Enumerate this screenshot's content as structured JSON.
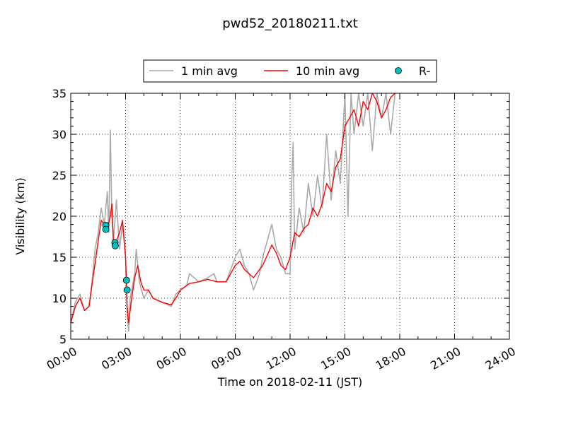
{
  "chart_data": {
    "type": "line",
    "title": "pwd52_20180211.txt",
    "xlabel": "Time on 2018-02-11 (JST)",
    "ylabel": "Visibility (km)",
    "xlim": [
      "00:00",
      "24:00"
    ],
    "ylim": [
      5,
      35
    ],
    "x_ticks": [
      "00:00",
      "03:00",
      "06:00",
      "09:00",
      "12:00",
      "15:00",
      "18:00",
      "21:00",
      "24:00"
    ],
    "y_ticks": [
      "5",
      "10",
      "15",
      "20",
      "25",
      "30",
      "35"
    ],
    "grid": true,
    "legend_position": "top",
    "series": [
      {
        "name": "1 min avg",
        "style": "line",
        "color": "#aaaaaa",
        "points": [
          [
            "00:00",
            7
          ],
          [
            "00:15",
            9.5
          ],
          [
            "00:30",
            10.5
          ],
          [
            "00:45",
            8.5
          ],
          [
            "01:00",
            9
          ],
          [
            "01:10",
            12
          ],
          [
            "01:20",
            16
          ],
          [
            "01:30",
            18
          ],
          [
            "01:40",
            21
          ],
          [
            "01:50",
            19
          ],
          [
            "02:00",
            23
          ],
          [
            "02:05",
            18
          ],
          [
            "02:10",
            30.5
          ],
          [
            "02:15",
            20
          ],
          [
            "02:20",
            17
          ],
          [
            "02:30",
            22
          ],
          [
            "02:40",
            16
          ],
          [
            "02:50",
            19
          ],
          [
            "03:00",
            15
          ],
          [
            "03:05",
            8
          ],
          [
            "03:10",
            6
          ],
          [
            "03:15",
            10
          ],
          [
            "03:30",
            13
          ],
          [
            "03:35",
            16
          ],
          [
            "03:45",
            12
          ],
          [
            "04:00",
            10
          ],
          [
            "04:15",
            11
          ],
          [
            "04:30",
            10
          ],
          [
            "05:00",
            9.5
          ],
          [
            "05:30",
            9
          ],
          [
            "05:45",
            10.5
          ],
          [
            "06:00",
            11
          ],
          [
            "06:20",
            11.5
          ],
          [
            "06:30",
            13
          ],
          [
            "07:00",
            12
          ],
          [
            "07:30",
            12.5
          ],
          [
            "07:50",
            13
          ],
          [
            "08:00",
            12
          ],
          [
            "08:30",
            12
          ],
          [
            "09:00",
            15
          ],
          [
            "09:15",
            16
          ],
          [
            "09:30",
            14
          ],
          [
            "09:45",
            13
          ],
          [
            "10:00",
            11
          ],
          [
            "10:20",
            13
          ],
          [
            "10:30",
            15
          ],
          [
            "11:00",
            19
          ],
          [
            "11:15",
            16
          ],
          [
            "11:30",
            15
          ],
          [
            "11:45",
            13
          ],
          [
            "12:00",
            13
          ],
          [
            "12:05",
            24
          ],
          [
            "12:10",
            29
          ],
          [
            "12:15",
            16
          ],
          [
            "12:30",
            21
          ],
          [
            "12:45",
            18
          ],
          [
            "13:00",
            24
          ],
          [
            "13:15",
            20
          ],
          [
            "13:30",
            25
          ],
          [
            "13:45",
            21
          ],
          [
            "14:00",
            30
          ],
          [
            "14:15",
            22
          ],
          [
            "14:30",
            28
          ],
          [
            "14:45",
            24
          ],
          [
            "15:00",
            35
          ],
          [
            "15:10",
            20
          ],
          [
            "15:20",
            35
          ],
          [
            "15:30",
            30
          ],
          [
            "15:45",
            35
          ],
          [
            "16:00",
            31
          ],
          [
            "16:15",
            35
          ],
          [
            "16:30",
            28
          ],
          [
            "16:45",
            35
          ],
          [
            "17:00",
            32
          ],
          [
            "17:15",
            35
          ],
          [
            "17:30",
            30
          ],
          [
            "17:45",
            35
          ]
        ]
      },
      {
        "name": "10 min avg",
        "style": "line",
        "color": "#ff0000",
        "points": [
          [
            "00:00",
            7
          ],
          [
            "00:15",
            9
          ],
          [
            "00:30",
            10
          ],
          [
            "00:45",
            8.5
          ],
          [
            "01:00",
            9
          ],
          [
            "01:15",
            13
          ],
          [
            "01:30",
            17
          ],
          [
            "01:40",
            19.5
          ],
          [
            "01:50",
            19
          ],
          [
            "02:00",
            18.5
          ],
          [
            "02:10",
            20
          ],
          [
            "02:15",
            21.5
          ],
          [
            "02:20",
            17
          ],
          [
            "02:30",
            17
          ],
          [
            "02:40",
            18
          ],
          [
            "02:50",
            19.5
          ],
          [
            "03:00",
            15
          ],
          [
            "03:05",
            9
          ],
          [
            "03:10",
            7
          ],
          [
            "03:20",
            10
          ],
          [
            "03:30",
            12.5
          ],
          [
            "03:40",
            14
          ],
          [
            "03:50",
            12
          ],
          [
            "04:00",
            11
          ],
          [
            "04:15",
            11
          ],
          [
            "04:30",
            10
          ],
          [
            "05:00",
            9.5
          ],
          [
            "05:30",
            9.2
          ],
          [
            "05:45",
            10
          ],
          [
            "06:00",
            11
          ],
          [
            "06:30",
            11.8
          ],
          [
            "07:00",
            12
          ],
          [
            "07:30",
            12.3
          ],
          [
            "08:00",
            12
          ],
          [
            "08:30",
            12
          ],
          [
            "09:00",
            14
          ],
          [
            "09:15",
            14.5
          ],
          [
            "09:30",
            13.5
          ],
          [
            "10:00",
            12.5
          ],
          [
            "10:30",
            14
          ],
          [
            "11:00",
            16.5
          ],
          [
            "11:15",
            15.5
          ],
          [
            "11:30",
            14
          ],
          [
            "11:45",
            13.5
          ],
          [
            "12:00",
            15
          ],
          [
            "12:15",
            18
          ],
          [
            "12:30",
            17.5
          ],
          [
            "12:45",
            18.5
          ],
          [
            "13:00",
            19
          ],
          [
            "13:15",
            21
          ],
          [
            "13:30",
            20
          ],
          [
            "13:45",
            21.5
          ],
          [
            "14:00",
            24
          ],
          [
            "14:15",
            23
          ],
          [
            "14:30",
            26
          ],
          [
            "14:45",
            27
          ],
          [
            "15:00",
            31
          ],
          [
            "15:15",
            32
          ],
          [
            "15:30",
            33
          ],
          [
            "15:45",
            31
          ],
          [
            "16:00",
            34
          ],
          [
            "16:15",
            33
          ],
          [
            "16:30",
            35
          ],
          [
            "16:45",
            34
          ],
          [
            "17:00",
            32
          ],
          [
            "17:15",
            33
          ],
          [
            "17:30",
            34.5
          ],
          [
            "17:45",
            35
          ]
        ]
      },
      {
        "name": "R-",
        "style": "markers",
        "color": "#00bfbf",
        "points": [
          [
            "01:55",
            18.9
          ],
          [
            "01:55",
            18.4
          ],
          [
            "02:25",
            16.8
          ],
          [
            "02:26",
            16.4
          ],
          [
            "03:03",
            12.2
          ],
          [
            "03:05",
            11.0
          ]
        ]
      }
    ]
  }
}
